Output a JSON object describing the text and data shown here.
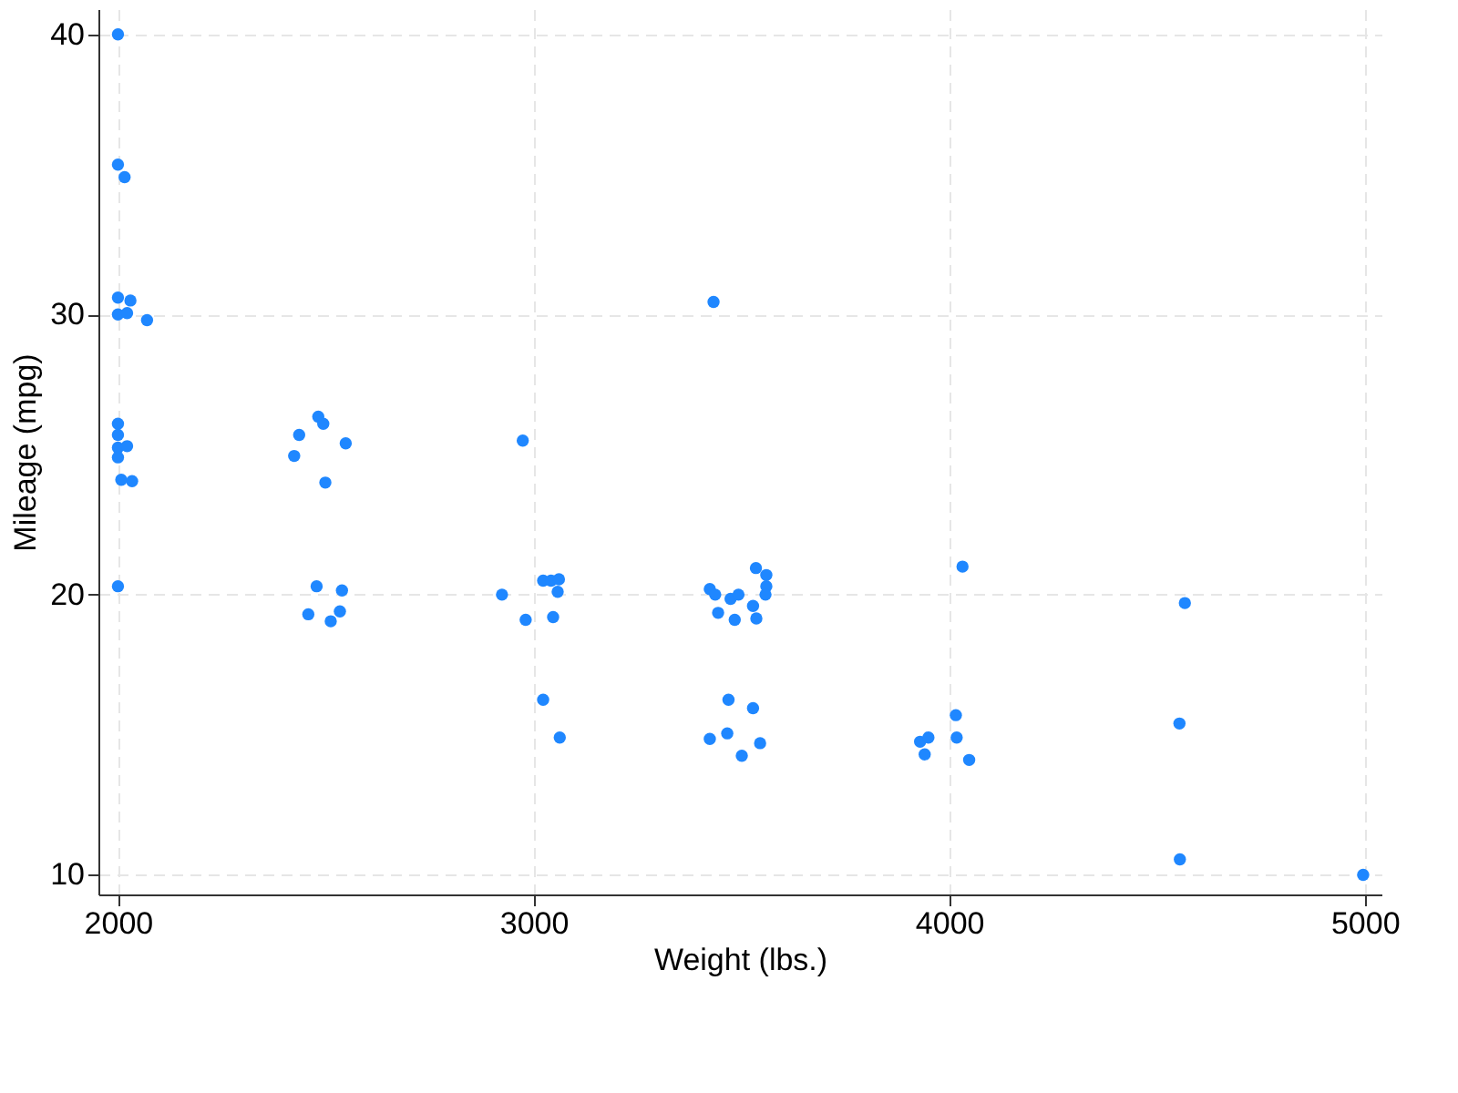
{
  "chart_data": {
    "type": "scatter",
    "xlabel": "Weight (lbs.)",
    "ylabel": "Mileage (mpg)",
    "xlim": [
      1953,
      5040
    ],
    "ylim": [
      9.3,
      40.9
    ],
    "xticks": [
      2000,
      3000,
      4000,
      5000
    ],
    "yticks": [
      10,
      20,
      30,
      40
    ],
    "grid": true,
    "marker": "circle",
    "series": [
      {
        "color": "#1f87ff",
        "x": [
          2000,
          2000,
          2016,
          2000,
          2030,
          2000,
          2022,
          2070,
          2000,
          2000,
          2000,
          2022,
          2000,
          2008,
          2034,
          2000,
          2436,
          2482,
          2494,
          2424,
          2548,
          2499,
          2478,
          2539,
          2458,
          2534,
          2512,
          2974,
          2924,
          3023,
          3042,
          3061,
          3058,
          2981,
          3047,
          3023,
          3063,
          3433,
          3424,
          3437,
          3474,
          3493,
          3535,
          3560,
          3560,
          3558,
          3528,
          3444,
          3484,
          3536,
          3469,
          3528,
          3466,
          3424,
          3545,
          3501,
          4032,
          4016,
          4018,
          4048,
          3930,
          3950,
          3941,
          4567,
          4554,
          4555,
          4996
        ],
        "values": [
          40.0,
          35.35,
          34.9,
          30.6,
          30.5,
          30.0,
          30.05,
          29.8,
          26.1,
          25.7,
          25.25,
          25.3,
          24.9,
          24.1,
          24.05,
          20.3,
          25.7,
          26.35,
          26.1,
          24.95,
          25.4,
          24.0,
          20.3,
          20.15,
          19.3,
          19.4,
          19.05,
          25.5,
          20.0,
          20.5,
          20.5,
          20.55,
          20.1,
          19.1,
          19.2,
          16.25,
          14.9,
          30.45,
          20.2,
          20.0,
          19.85,
          20.0,
          20.95,
          20.7,
          20.3,
          20.0,
          19.6,
          19.35,
          19.1,
          19.15,
          16.25,
          15.95,
          15.05,
          14.85,
          14.7,
          14.25,
          21.0,
          15.7,
          14.9,
          14.1,
          14.75,
          14.9,
          14.3,
          19.7,
          15.4,
          10.55,
          10.0
        ]
      }
    ]
  }
}
